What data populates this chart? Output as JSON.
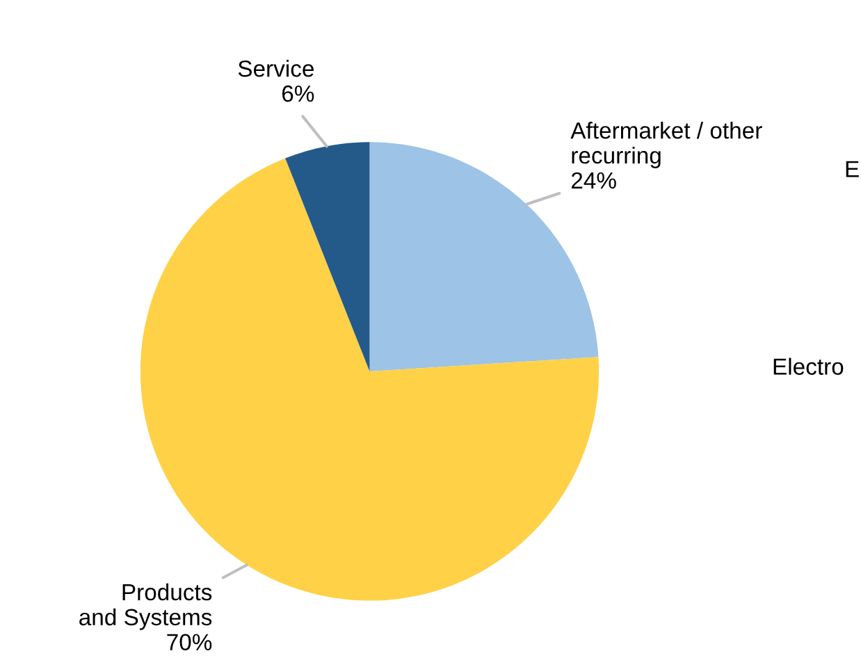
{
  "chart_data": {
    "type": "pie",
    "categories": [
      "Aftermarket / other\nrecurring",
      "Products\nand Systems",
      "Service"
    ],
    "values": [
      24,
      70,
      6
    ],
    "value_labels": [
      "24%",
      "70%",
      "6%"
    ],
    "colors": [
      "#9dc3e6",
      "#ffd147",
      "#245a8a"
    ],
    "annotations": [
      "E",
      "Electro"
    ]
  }
}
